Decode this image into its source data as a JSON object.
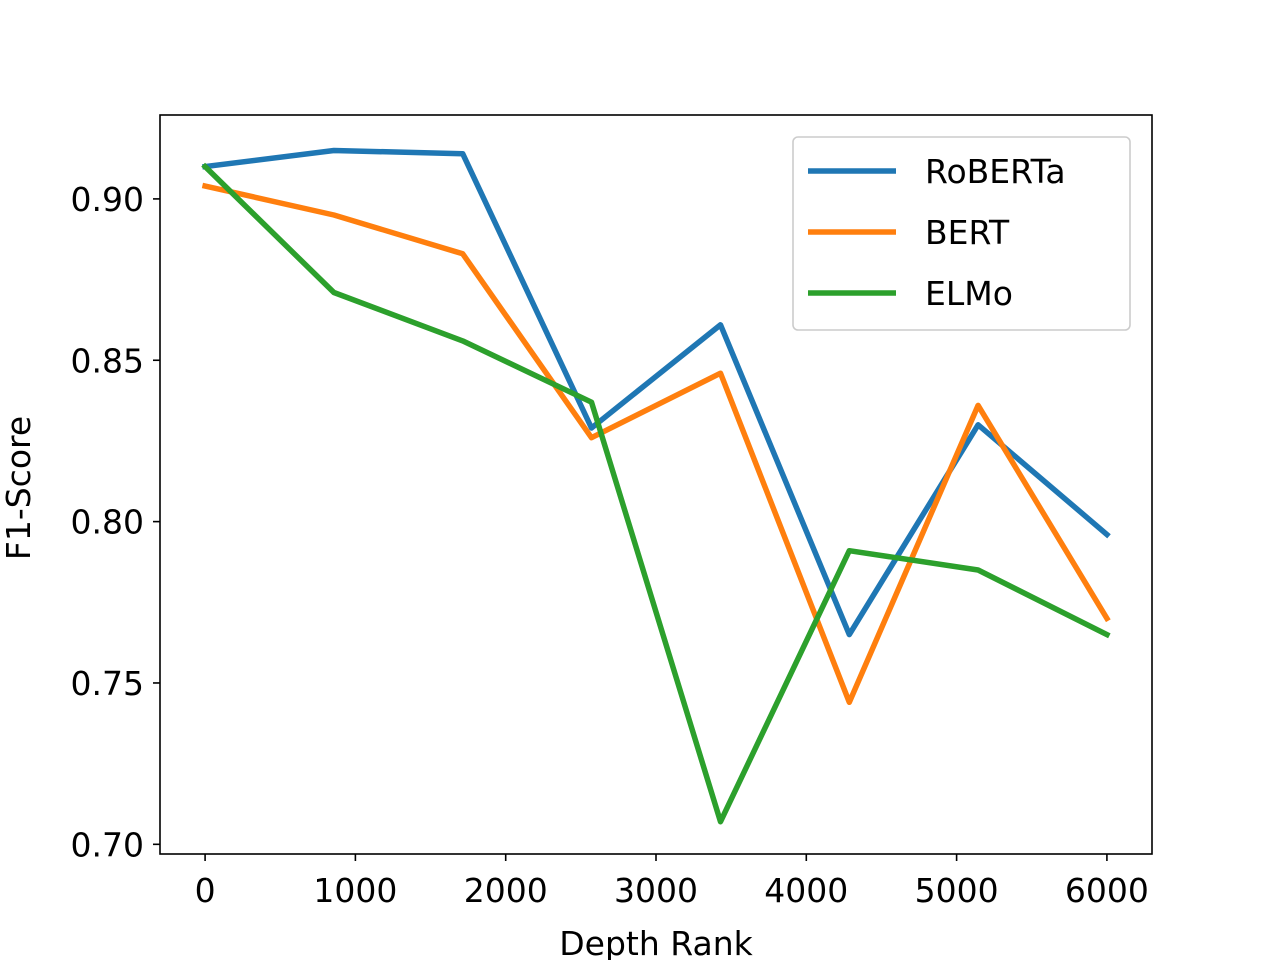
{
  "chart_data": {
    "type": "line",
    "title": "",
    "xlabel": "Depth Rank",
    "ylabel": "F1-Score",
    "xlim": [
      -300,
      6300
    ],
    "ylim": [
      0.697,
      0.926
    ],
    "xticks": [
      0,
      1000,
      2000,
      3000,
      4000,
      5000,
      6000
    ],
    "xtick_labels": [
      "0",
      "1000",
      "2000",
      "3000",
      "4000",
      "5000",
      "6000"
    ],
    "yticks": [
      0.7,
      0.75,
      0.8,
      0.85,
      0.9
    ],
    "ytick_labels": [
      "0.70",
      "0.75",
      "0.80",
      "0.85",
      "0.90"
    ],
    "grid": false,
    "legend_position": "top-right",
    "x": [
      0,
      857,
      1714,
      2571,
      3429,
      4286,
      5143,
      6000
    ],
    "series": [
      {
        "name": "RoBERTa",
        "color": "#1f77b4",
        "values": [
          0.91,
          0.915,
          0.914,
          0.829,
          0.861,
          0.765,
          0.83,
          0.796
        ]
      },
      {
        "name": "BERT",
        "color": "#ff7f0e",
        "values": [
          0.904,
          0.895,
          0.883,
          0.826,
          0.846,
          0.744,
          0.836,
          0.77
        ]
      },
      {
        "name": "ELMo",
        "color": "#2ca02c",
        "values": [
          0.91,
          0.871,
          0.856,
          0.837,
          0.707,
          0.791,
          0.785,
          0.765
        ]
      }
    ]
  }
}
